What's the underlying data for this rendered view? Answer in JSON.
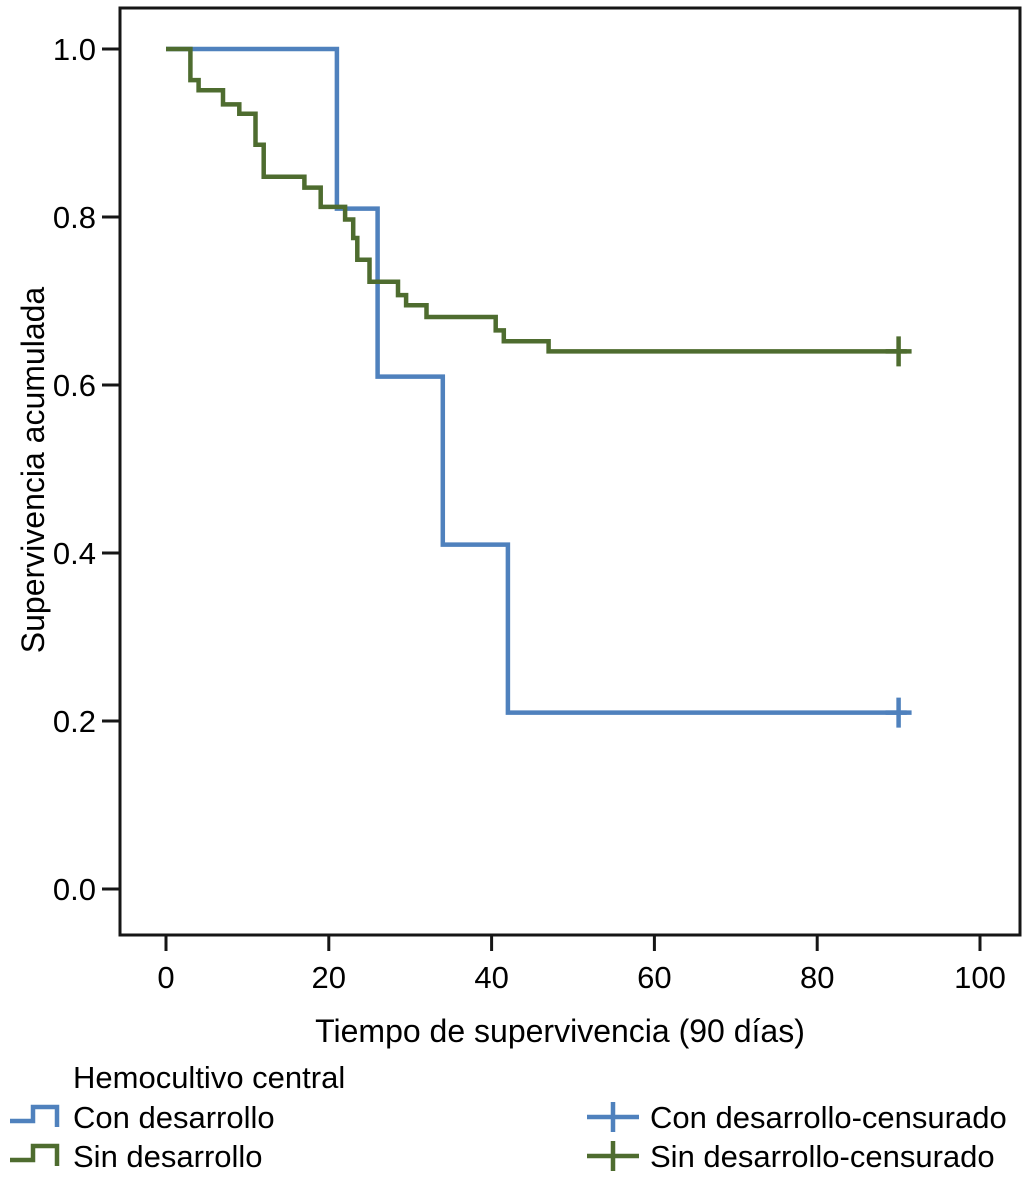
{
  "chart_data": {
    "type": "line",
    "subtype": "kaplan-meier-step-plot",
    "title": "",
    "xlabel": "Tiempo de supervivencia (90 días)",
    "ylabel": "Supervivencia acumulada",
    "xlim": [
      0,
      100
    ],
    "ylim": [
      0.0,
      1.0
    ],
    "x_ticks": [
      0,
      20,
      40,
      60,
      80,
      100
    ],
    "y_ticks": [
      "0.0",
      "0.2",
      "0.4",
      "0.6",
      "0.8",
      "1.0"
    ],
    "grid": false,
    "legend_position": "bottom",
    "frame_color": "#161616",
    "series": [
      {
        "name": "Con desarrollo",
        "color": "#4f81bd",
        "steps": [
          [
            0,
            1.0
          ],
          [
            21,
            0.81
          ],
          [
            26,
            0.61
          ],
          [
            34,
            0.41
          ],
          [
            42,
            0.21
          ],
          [
            91,
            0.21
          ]
        ],
        "censored": [
          [
            90,
            0.21
          ]
        ]
      },
      {
        "name": "Sin desarrollo",
        "color": "#4e6c2f",
        "steps": [
          [
            0,
            1.0
          ],
          [
            3,
            0.963
          ],
          [
            4,
            0.951
          ],
          [
            7,
            0.934
          ],
          [
            9,
            0.923
          ],
          [
            11,
            0.886
          ],
          [
            12,
            0.848
          ],
          [
            17,
            0.835
          ],
          [
            19,
            0.812
          ],
          [
            22,
            0.797
          ],
          [
            23,
            0.775
          ],
          [
            23.5,
            0.749
          ],
          [
            25,
            0.723
          ],
          [
            28.5,
            0.707
          ],
          [
            29.5,
            0.695
          ],
          [
            32,
            0.681
          ],
          [
            40.5,
            0.665
          ],
          [
            41.5,
            0.652
          ],
          [
            47,
            0.64
          ],
          [
            91,
            0.64
          ]
        ],
        "censored": [
          [
            90,
            0.64
          ]
        ]
      }
    ]
  },
  "legend": {
    "title": "Hemocultivo central",
    "items": [
      {
        "label": "Con desarrollo",
        "color": "#4f81bd",
        "marker": "step-line"
      },
      {
        "label": "Sin desarrollo",
        "color": "#4e6c2f",
        "marker": "step-line"
      },
      {
        "label": "Con desarrollo-censurado",
        "color": "#4f81bd",
        "marker": "censor-plus"
      },
      {
        "label": "Sin desarrollo-censurado",
        "color": "#4e6c2f",
        "marker": "censor-plus"
      }
    ]
  }
}
